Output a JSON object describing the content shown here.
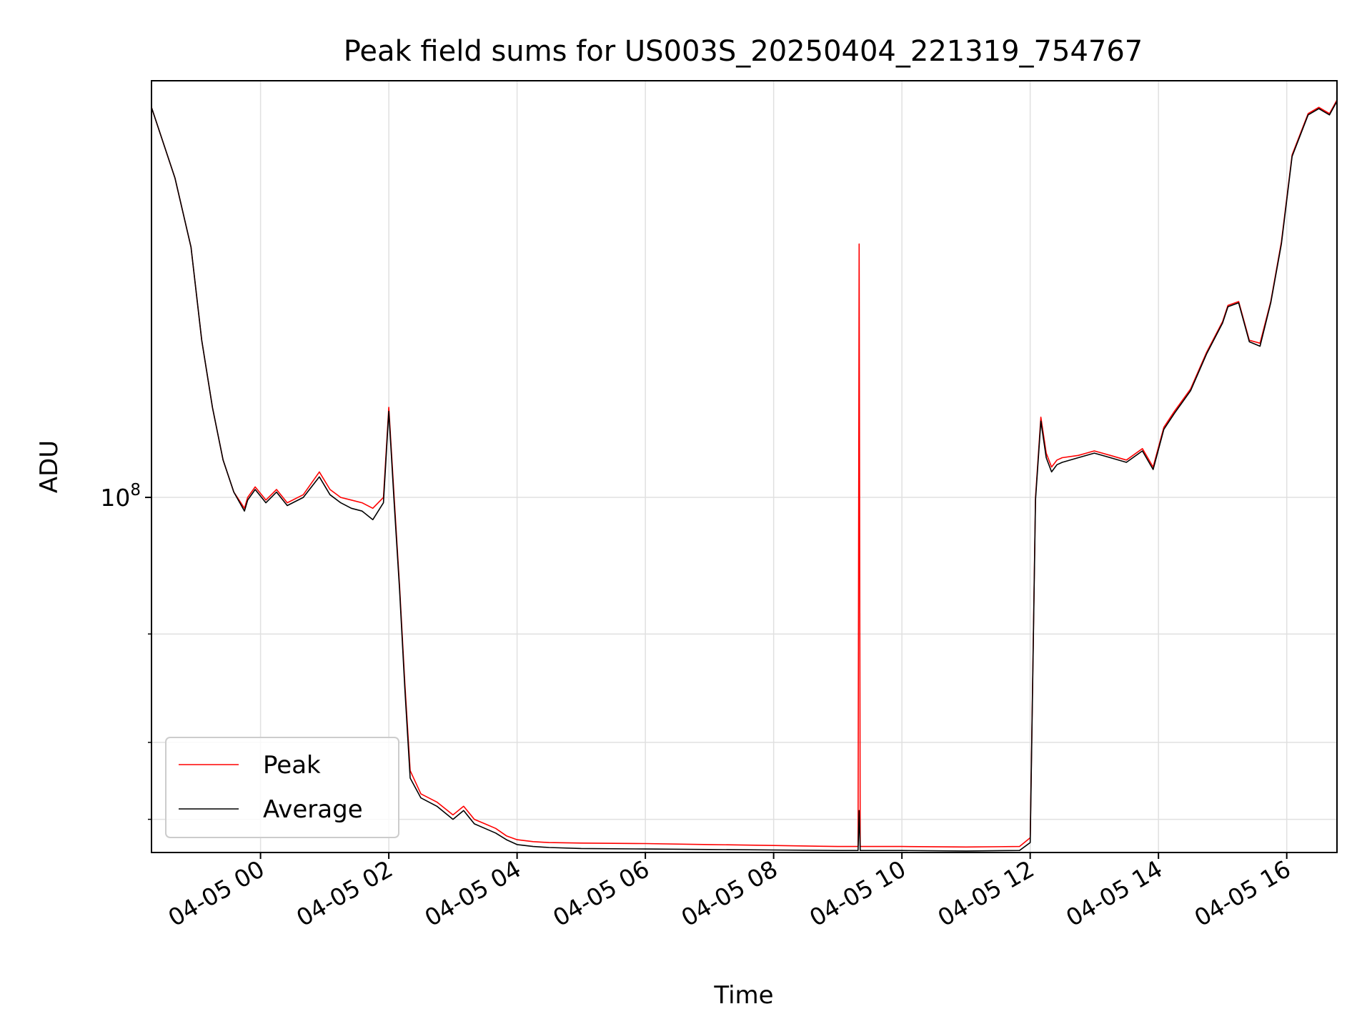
{
  "chart_data": {
    "type": "line",
    "title": "Peak field sums for US003S_20250404_221319_754767",
    "xlabel": "Time",
    "ylabel": "ADU",
    "x_type": "datetime",
    "xlim": [
      "2025-04-04T22:18",
      "2025-04-05T16:47"
    ],
    "ylog": true,
    "ylim": [
      26500000,
      475000000
    ],
    "grid": true,
    "legend_position": "lower-left",
    "x_ticks": [
      "2025-04-05T00:00",
      "2025-04-05T02:00",
      "2025-04-05T04:00",
      "2025-04-05T06:00",
      "2025-04-05T08:00",
      "2025-04-05T10:00",
      "2025-04-05T12:00",
      "2025-04-05T14:00",
      "2025-04-05T16:00"
    ],
    "x_tick_labels": [
      "04-05 00",
      "04-05 02",
      "04-05 04",
      "04-05 06",
      "04-05 08",
      "04-05 10",
      "04-05 12",
      "04-05 14",
      "04-05 16"
    ],
    "y_ticks": [
      100000000
    ],
    "y_tick_base": "10",
    "y_tick_exp": "8",
    "y_minor_ticks": [
      30000000,
      40000000,
      60000000
    ],
    "series": [
      {
        "name": "Peak",
        "color": "#ff0000",
        "x": [
          "2025-04-04T22:18",
          "2025-04-04T22:40",
          "2025-04-04T22:55",
          "2025-04-04T23:05",
          "2025-04-04T23:15",
          "2025-04-04T23:25",
          "2025-04-04T23:35",
          "2025-04-04T23:45",
          "2025-04-04T23:48",
          "2025-04-04T23:55",
          "2025-04-05T00:05",
          "2025-04-05T00:15",
          "2025-04-05T00:25",
          "2025-04-05T00:40",
          "2025-04-05T00:55",
          "2025-04-05T01:05",
          "2025-04-05T01:15",
          "2025-04-05T01:25",
          "2025-04-05T01:35",
          "2025-04-05T01:45",
          "2025-04-05T01:55",
          "2025-04-05T02:00",
          "2025-04-05T02:05",
          "2025-04-05T02:10",
          "2025-04-05T02:15",
          "2025-04-05T02:20",
          "2025-04-05T02:30",
          "2025-04-05T02:45",
          "2025-04-05T03:00",
          "2025-04-05T03:10",
          "2025-04-05T03:20",
          "2025-04-05T03:30",
          "2025-04-05T03:40",
          "2025-04-05T03:50",
          "2025-04-05T04:00",
          "2025-04-05T04:15",
          "2025-04-05T04:30",
          "2025-04-05T05:00",
          "2025-04-05T06:00",
          "2025-04-05T07:00",
          "2025-04-05T08:00",
          "2025-04-05T09:00",
          "2025-04-05T09:19",
          "2025-04-05T09:20",
          "2025-04-05T09:21",
          "2025-04-05T10:00",
          "2025-04-05T11:00",
          "2025-04-05T11:50",
          "2025-04-05T12:00",
          "2025-04-05T12:05",
          "2025-04-05T12:10",
          "2025-04-05T12:15",
          "2025-04-05T12:20",
          "2025-04-05T12:25",
          "2025-04-05T12:30",
          "2025-04-05T12:45",
          "2025-04-05T13:00",
          "2025-04-05T13:15",
          "2025-04-05T13:30",
          "2025-04-05T13:45",
          "2025-04-05T13:55",
          "2025-04-05T14:05",
          "2025-04-05T14:15",
          "2025-04-05T14:30",
          "2025-04-05T14:45",
          "2025-04-05T15:00",
          "2025-04-05T15:05",
          "2025-04-05T15:15",
          "2025-04-05T15:25",
          "2025-04-05T15:35",
          "2025-04-05T15:45",
          "2025-04-05T15:55",
          "2025-04-05T16:05",
          "2025-04-05T16:20",
          "2025-04-05T16:30",
          "2025-04-05T16:35",
          "2025-04-05T16:40",
          "2025-04-05T16:47"
        ],
        "y": [
          430000000,
          330000000,
          255000000,
          180000000,
          140000000,
          115000000,
          102000000,
          96000000,
          100000000,
          104000000,
          99000000,
          103000000,
          98000000,
          101000000,
          110000000,
          103000000,
          100000000,
          99000000,
          98000000,
          96000000,
          100000000,
          140000000,
          100000000,
          72000000,
          50000000,
          36000000,
          33000000,
          32000000,
          30500000,
          31500000,
          30000000,
          29500000,
          29000000,
          28200000,
          27800000,
          27600000,
          27500000,
          27450000,
          27400000,
          27300000,
          27200000,
          27100000,
          27100000,
          258000000,
          27100000,
          27100000,
          27050000,
          27100000,
          28000000,
          100000000,
          135000000,
          118000000,
          112000000,
          115000000,
          116000000,
          117000000,
          119000000,
          117000000,
          115000000,
          120000000,
          112000000,
          130000000,
          138000000,
          150000000,
          172000000,
          193000000,
          205000000,
          208000000,
          180000000,
          178000000,
          208000000,
          260000000,
          360000000,
          420000000,
          430000000,
          425000000,
          420000000,
          442000000
        ]
      },
      {
        "name": "Average",
        "color": "#000000",
        "x": [
          "2025-04-04T22:18",
          "2025-04-04T22:40",
          "2025-04-04T22:55",
          "2025-04-04T23:05",
          "2025-04-04T23:15",
          "2025-04-04T23:25",
          "2025-04-04T23:35",
          "2025-04-04T23:45",
          "2025-04-04T23:48",
          "2025-04-04T23:55",
          "2025-04-05T00:05",
          "2025-04-05T00:15",
          "2025-04-05T00:25",
          "2025-04-05T00:40",
          "2025-04-05T00:55",
          "2025-04-05T01:05",
          "2025-04-05T01:15",
          "2025-04-05T01:25",
          "2025-04-05T01:35",
          "2025-04-05T01:45",
          "2025-04-05T01:55",
          "2025-04-05T02:00",
          "2025-04-05T02:05",
          "2025-04-05T02:10",
          "2025-04-05T02:15",
          "2025-04-05T02:20",
          "2025-04-05T02:30",
          "2025-04-05T02:45",
          "2025-04-05T03:00",
          "2025-04-05T03:10",
          "2025-04-05T03:20",
          "2025-04-05T03:30",
          "2025-04-05T03:40",
          "2025-04-05T03:50",
          "2025-04-05T04:00",
          "2025-04-05T04:15",
          "2025-04-05T04:30",
          "2025-04-05T05:00",
          "2025-04-05T06:00",
          "2025-04-05T07:00",
          "2025-04-05T08:00",
          "2025-04-05T09:00",
          "2025-04-05T09:19",
          "2025-04-05T09:20",
          "2025-04-05T09:21",
          "2025-04-05T10:00",
          "2025-04-05T11:00",
          "2025-04-05T11:50",
          "2025-04-05T12:00",
          "2025-04-05T12:05",
          "2025-04-05T12:10",
          "2025-04-05T12:15",
          "2025-04-05T12:20",
          "2025-04-05T12:25",
          "2025-04-05T12:30",
          "2025-04-05T12:45",
          "2025-04-05T13:00",
          "2025-04-05T13:15",
          "2025-04-05T13:30",
          "2025-04-05T13:45",
          "2025-04-05T13:55",
          "2025-04-05T14:05",
          "2025-04-05T14:15",
          "2025-04-05T14:30",
          "2025-04-05T14:45",
          "2025-04-05T15:00",
          "2025-04-05T15:05",
          "2025-04-05T15:15",
          "2025-04-05T15:25",
          "2025-04-05T15:35",
          "2025-04-05T15:45",
          "2025-04-05T15:55",
          "2025-04-05T16:05",
          "2025-04-05T16:20",
          "2025-04-05T16:30",
          "2025-04-05T16:35",
          "2025-04-05T16:40",
          "2025-04-05T16:47"
        ],
        "y": [
          430000000,
          330000000,
          255000000,
          180000000,
          140000000,
          115000000,
          102000000,
          95000000,
          99000000,
          103000000,
          98000000,
          102000000,
          97000000,
          100000000,
          108000000,
          101000000,
          98000000,
          96000000,
          95000000,
          92000000,
          98000000,
          138000000,
          98000000,
          71000000,
          49000000,
          35000000,
          32500000,
          31500000,
          30000000,
          31000000,
          29500000,
          29000000,
          28500000,
          27800000,
          27300000,
          27100000,
          27000000,
          26900000,
          26850000,
          26800000,
          26750000,
          26700000,
          26700000,
          31000000,
          26700000,
          26700000,
          26650000,
          26700000,
          27500000,
          99000000,
          133000000,
          116000000,
          110000000,
          113000000,
          114000000,
          116000000,
          118000000,
          116000000,
          114000000,
          119000000,
          111000000,
          129000000,
          137000000,
          149000000,
          171000000,
          192000000,
          204000000,
          207000000,
          179000000,
          176000000,
          207000000,
          258000000,
          358000000,
          418000000,
          428000000,
          423000000,
          418000000,
          440000000
        ]
      }
    ]
  }
}
